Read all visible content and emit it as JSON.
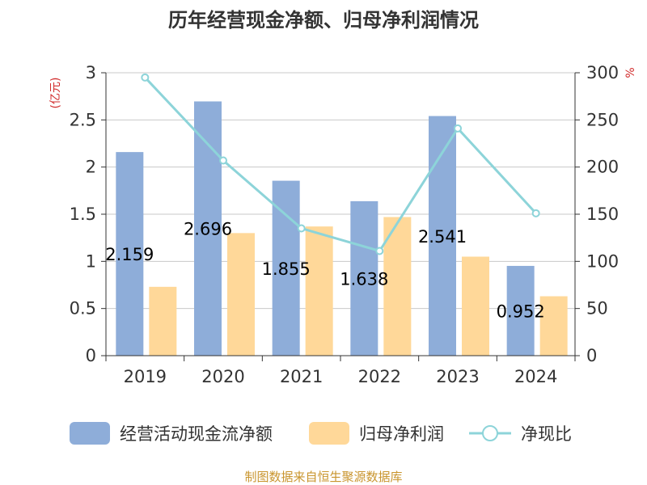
{
  "chart_data": {
    "type": "bar",
    "title": "历年经营现金净额、归母净利润情况",
    "categories": [
      "2019",
      "2020",
      "2021",
      "2022",
      "2023",
      "2024"
    ],
    "series": [
      {
        "name": "经营活动现金流净额",
        "kind": "bar",
        "axis": "left",
        "color": "#8EADD9",
        "values": [
          2.159,
          2.696,
          1.855,
          1.638,
          2.541,
          0.952
        ],
        "data_labels": [
          "2.159",
          "2.696",
          "1.855",
          "1.638",
          "2.541",
          "0.952"
        ]
      },
      {
        "name": "归母净利润",
        "kind": "bar",
        "axis": "left",
        "color": "#FFD899",
        "values": [
          0.73,
          1.3,
          1.37,
          1.47,
          1.05,
          0.63
        ]
      },
      {
        "name": "净现比",
        "kind": "line",
        "axis": "right",
        "color": "#8DD4D9",
        "values": [
          295,
          207,
          135,
          111,
          241,
          151
        ]
      }
    ],
    "y_left": {
      "unit": "(亿元)",
      "ylim": [
        0,
        3
      ],
      "ticks": [
        "0",
        "0.5",
        "1",
        "1.5",
        "2",
        "2.5",
        "3"
      ]
    },
    "y_right": {
      "unit": "%",
      "ylim": [
        0,
        300
      ],
      "ticks": [
        "0",
        "50",
        "100",
        "150",
        "200",
        "250",
        "300"
      ]
    },
    "grid": true,
    "legend_position": "bottom"
  },
  "source_text": "制图数据来自恒生聚源数据库"
}
